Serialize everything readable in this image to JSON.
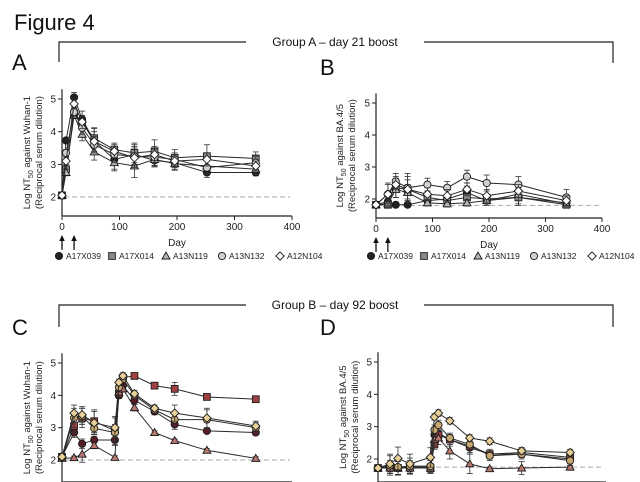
{
  "figure_title": "Figure 4",
  "groups": [
    {
      "label": "Group A – day 21 boost"
    },
    {
      "label": "Group B – day 92 boost"
    }
  ],
  "legend": {
    "entries": [
      {
        "name": "A17X039",
        "marker": "circle",
        "fill": "#222222"
      },
      {
        "name": "A17X014",
        "marker": "square",
        "fill": "#8a8a8a"
      },
      {
        "name": "A13N119",
        "marker": "triangle",
        "fill": "#b5b5b5"
      },
      {
        "name": "A13N132",
        "marker": "circle",
        "fill": "#d0d0d0"
      },
      {
        "name": "A12N104",
        "marker": "diamond",
        "fill": "#ffffff"
      }
    ]
  },
  "chart_data": [
    {
      "panel": "A",
      "type": "line",
      "title": "",
      "xlabel": "Day",
      "ylabel": "Log NT50 against Wuhan-1",
      "ylabel2": "(Reciprocal serum dilution)",
      "xlim": [
        0,
        400
      ],
      "ylim": [
        1.6,
        5.3
      ],
      "xticks": [
        0,
        100,
        200,
        300,
        400
      ],
      "yticks": [
        2,
        3,
        4,
        5
      ],
      "lod": 2.0,
      "dose_arrows_days": [
        0,
        21
      ],
      "show_xaxis_labels": true,
      "series": [
        {
          "name": "A17X039",
          "marker": "circle",
          "fill": "#222222",
          "x": [
            0,
            7,
            21,
            35,
            56,
            91,
            126,
            161,
            196,
            252,
            337
          ],
          "y": [
            2.05,
            3.73,
            5.05,
            4.38,
            3.72,
            3.15,
            3.3,
            3.12,
            3.05,
            2.75,
            2.75
          ],
          "err": [
            0,
            0.08,
            0.15,
            0.25,
            0.4,
            0.3,
            0.3,
            0.2,
            0.2,
            0.15,
            0.1
          ]
        },
        {
          "name": "A17X014",
          "marker": "square",
          "fill": "#8a8a8a",
          "x": [
            0,
            7,
            21,
            35,
            56,
            91,
            126,
            161,
            196,
            252,
            337
          ],
          "y": [
            2.05,
            2.85,
            4.55,
            4.25,
            3.8,
            3.45,
            3.35,
            3.4,
            3.2,
            3.25,
            3.18
          ],
          "err": [
            0,
            0.15,
            0.15,
            0.2,
            0.3,
            0.2,
            0.3,
            0.35,
            0.25,
            0.35,
            0.2
          ]
        },
        {
          "name": "A13N119",
          "marker": "triangle",
          "fill": "#b5b5b5",
          "x": [
            0,
            7,
            21,
            35,
            56,
            91,
            126,
            161,
            196,
            252,
            337
          ],
          "y": [
            2.05,
            2.75,
            4.5,
            3.92,
            3.38,
            3.05,
            2.95,
            3.15,
            3.02,
            2.95,
            2.85
          ],
          "err": [
            0,
            0.1,
            0.1,
            0.2,
            0.25,
            0.25,
            0.35,
            0.2,
            0.2,
            0.15,
            0.15
          ]
        },
        {
          "name": "A13N132",
          "marker": "circle",
          "fill": "#d0d0d0",
          "x": [
            0,
            7,
            21,
            35,
            56,
            91,
            126,
            161,
            196,
            252,
            337
          ],
          "y": [
            2.05,
            3.35,
            4.6,
            4.12,
            3.6,
            3.3,
            3.25,
            3.22,
            3.15,
            2.9,
            3.05
          ],
          "err": [
            0,
            0.1,
            0.15,
            0.2,
            0.25,
            0.25,
            0.3,
            0.25,
            0.2,
            0.2,
            0.2
          ]
        },
        {
          "name": "A12N104",
          "marker": "diamond",
          "fill": "#ffffff",
          "x": [
            0,
            7,
            21,
            35,
            56,
            91,
            126,
            161,
            196,
            252,
            337
          ],
          "y": [
            2.05,
            3.1,
            4.85,
            4.3,
            3.7,
            3.4,
            3.2,
            3.3,
            3.1,
            3.15,
            2.95
          ],
          "err": [
            0,
            0.1,
            0.15,
            0.2,
            0.3,
            0.2,
            0.3,
            0.25,
            0.2,
            0.2,
            0.15
          ]
        }
      ]
    },
    {
      "panel": "B",
      "type": "line",
      "title": "",
      "xlabel": "Day",
      "ylabel": "Log NT50 against BA.4/5",
      "ylabel2": "(Reciprocal serum dilution)",
      "xlim": [
        0,
        400
      ],
      "ylim": [
        1.4,
        5.3
      ],
      "xticks": [
        0,
        100,
        200,
        300,
        400
      ],
      "yticks": [
        2,
        3,
        4,
        5
      ],
      "lod": 1.8,
      "dose_arrows_days": [
        0,
        21
      ],
      "show_xaxis_labels": true,
      "series": [
        {
          "name": "A17X039",
          "marker": "circle",
          "fill": "#222222",
          "x": [
            0,
            21,
            35,
            56,
            91,
            126,
            161,
            196,
            252,
            337
          ],
          "y": [
            1.82,
            1.92,
            1.82,
            1.82,
            1.95,
            2.0,
            2.2,
            1.95,
            2.05,
            1.88
          ],
          "err": [
            0,
            0.15,
            0.05,
            0.05,
            0.15,
            0.15,
            0.2,
            0.15,
            0.25,
            0.1
          ]
        },
        {
          "name": "A17X014",
          "marker": "square",
          "fill": "#8a8a8a",
          "x": [
            0,
            21,
            35,
            56,
            91,
            126,
            161,
            196,
            252,
            337
          ],
          "y": [
            1.82,
            1.82,
            2.35,
            2.3,
            2.05,
            1.95,
            2.05,
            2.0,
            2.05,
            1.82
          ],
          "err": [
            0,
            0.1,
            0.3,
            0.3,
            0.2,
            0.15,
            0.2,
            0.15,
            0.2,
            0.05
          ]
        },
        {
          "name": "A13N119",
          "marker": "triangle",
          "fill": "#b5b5b5",
          "x": [
            0,
            21,
            35,
            56,
            91,
            126,
            161,
            196,
            252,
            337
          ],
          "y": [
            1.82,
            1.85,
            2.3,
            2.2,
            1.88,
            1.85,
            1.88,
            1.95,
            2.15,
            1.85
          ],
          "err": [
            0,
            0.1,
            0.25,
            0.25,
            0.1,
            0.1,
            0.1,
            0.1,
            0.2,
            0.05
          ]
        },
        {
          "name": "A13N132",
          "marker": "circle",
          "fill": "#d0d0d0",
          "x": [
            0,
            21,
            35,
            56,
            91,
            126,
            161,
            196,
            252,
            337
          ],
          "y": [
            1.82,
            2.15,
            2.55,
            2.35,
            2.45,
            2.35,
            2.7,
            2.5,
            2.45,
            2.05
          ],
          "err": [
            0,
            0.35,
            0.25,
            0.45,
            0.2,
            0.2,
            0.2,
            0.25,
            0.25,
            0.25
          ]
        },
        {
          "name": "A12N104",
          "marker": "diamond",
          "fill": "#ffffff",
          "x": [
            0,
            21,
            35,
            56,
            91,
            126,
            161,
            196,
            252,
            337
          ],
          "y": [
            1.82,
            2.15,
            2.45,
            2.3,
            2.15,
            2.1,
            2.3,
            2.1,
            2.25,
            1.95
          ],
          "err": [
            0,
            0.3,
            0.25,
            0.4,
            0.2,
            0.2,
            0.2,
            0.2,
            0.2,
            0.15
          ]
        }
      ]
    },
    {
      "panel": "C",
      "type": "line",
      "title": "",
      "xlabel": "",
      "ylabel": "Log NT50 against Wuhan-1",
      "ylabel2": "(Reciprocal serum dilution)",
      "xlim": [
        0,
        400
      ],
      "ylim": [
        1.6,
        5.3
      ],
      "xticks": [
        0,
        100,
        200,
        300,
        400
      ],
      "yticks": [
        2,
        3,
        4,
        5
      ],
      "lod": 2.0,
      "show_xaxis_labels": false,
      "series": [
        {
          "name": "A17X039",
          "marker": "circle",
          "fill": "#5a1a24",
          "x": [
            0,
            21,
            35,
            56,
            92,
            99,
            106,
            126,
            161,
            196,
            252,
            337
          ],
          "y": [
            2.1,
            2.85,
            2.5,
            2.62,
            2.62,
            4.0,
            4.3,
            3.85,
            3.5,
            3.1,
            2.9,
            2.85
          ],
          "err": [
            0,
            0.15,
            0.15,
            0.1,
            0.15,
            0.1,
            0.1,
            0.1,
            0.1,
            0.15,
            0.05,
            0.05
          ]
        },
        {
          "name": "A17X014",
          "marker": "square",
          "fill": "#a04040",
          "x": [
            0,
            21,
            35,
            56,
            92,
            99,
            106,
            126,
            161,
            196,
            252,
            337
          ],
          "y": [
            2.1,
            3.05,
            3.3,
            3.2,
            2.9,
            4.05,
            4.55,
            4.6,
            4.3,
            4.2,
            3.95,
            3.88
          ],
          "err": [
            0,
            0.2,
            0.3,
            0.35,
            0.45,
            0.1,
            0.1,
            0.05,
            0.1,
            0.2,
            0.05,
            0.05
          ]
        },
        {
          "name": "A13N119",
          "marker": "triangle",
          "fill": "#b87870",
          "x": [
            0,
            21,
            35,
            56,
            92,
            99,
            106,
            126,
            161,
            196,
            252,
            337
          ],
          "y": [
            2.05,
            2.07,
            2.18,
            2.45,
            2.08,
            4.1,
            4.2,
            3.62,
            2.85,
            2.6,
            2.3,
            2.05
          ],
          "err": [
            0,
            0.05,
            0.25,
            0.1,
            0.05,
            0.1,
            0.1,
            0.1,
            0.05,
            0.05,
            0.05,
            0.05
          ]
        },
        {
          "name": "A13N132",
          "marker": "circle",
          "fill": "#c8a870",
          "x": [
            0,
            21,
            35,
            56,
            92,
            99,
            106,
            126,
            161,
            196,
            252,
            337
          ],
          "y": [
            2.1,
            3.3,
            3.35,
            2.98,
            2.85,
            4.25,
            4.5,
            4.0,
            3.55,
            3.25,
            3.25,
            3.0
          ],
          "err": [
            0,
            0.3,
            0.25,
            0.2,
            0.25,
            0.1,
            0.1,
            0.1,
            0.1,
            0.2,
            0.3,
            0.15
          ]
        },
        {
          "name": "A12N104",
          "marker": "diamond",
          "fill": "#e8d098",
          "x": [
            0,
            21,
            35,
            56,
            92,
            99,
            106,
            126,
            161,
            196,
            252,
            337
          ],
          "y": [
            2.1,
            3.45,
            3.4,
            3.15,
            3.0,
            4.4,
            4.6,
            4.05,
            3.6,
            3.45,
            3.3,
            3.05
          ],
          "err": [
            0,
            0.25,
            0.25,
            0.35,
            0.3,
            0.1,
            0.1,
            0.1,
            0.1,
            0.25,
            0.3,
            0.15
          ]
        }
      ]
    },
    {
      "panel": "D",
      "type": "line",
      "title": "",
      "xlabel": "",
      "ylabel": "Log NT50 against BA.4/5",
      "ylabel2": "(Reciprocal serum dilution)",
      "xlim": [
        0,
        400
      ],
      "ylim": [
        1.4,
        5.3
      ],
      "xticks": [
        0,
        100,
        200,
        300,
        400
      ],
      "yticks": [
        2,
        3,
        4,
        5
      ],
      "lod": 1.75,
      "show_xaxis_labels": false,
      "series": [
        {
          "name": "A17X039",
          "marker": "circle",
          "fill": "#5a1a24",
          "x": [
            0,
            21,
            35,
            56,
            92,
            99,
            106,
            126,
            161,
            196,
            252,
            337
          ],
          "y": [
            1.72,
            1.75,
            1.72,
            1.75,
            1.75,
            2.75,
            2.8,
            2.6,
            2.35,
            2.15,
            2.15,
            2.0
          ],
          "err": [
            0,
            0.2,
            0.2,
            0.2,
            0.2,
            0.15,
            0.15,
            0.2,
            0.2,
            0.15,
            0.1,
            0.2
          ]
        },
        {
          "name": "A17X014",
          "marker": "square",
          "fill": "#a04040",
          "x": [
            0,
            21,
            35,
            56,
            92,
            99,
            106,
            126,
            161,
            196,
            252,
            337
          ],
          "y": [
            1.72,
            1.75,
            1.72,
            1.75,
            1.72,
            2.45,
            2.75,
            2.6,
            2.4,
            2.15,
            2.2,
            2.05
          ],
          "err": [
            0,
            0.15,
            0.2,
            0.15,
            0.15,
            0.15,
            0.15,
            0.15,
            0.2,
            0.1,
            0.15,
            0.1
          ]
        },
        {
          "name": "A13N119",
          "marker": "triangle",
          "fill": "#b87870",
          "x": [
            0,
            21,
            35,
            56,
            92,
            99,
            106,
            126,
            161,
            196,
            252,
            337
          ],
          "y": [
            1.72,
            1.72,
            1.72,
            1.72,
            1.72,
            2.6,
            2.65,
            2.25,
            1.85,
            1.7,
            1.72,
            1.75
          ],
          "err": [
            0,
            0.1,
            0.1,
            0.1,
            0.1,
            0.2,
            0.2,
            0.25,
            0.3,
            0.05,
            0.2,
            0.1
          ]
        },
        {
          "name": "A13N132",
          "marker": "circle",
          "fill": "#c8a870",
          "x": [
            0,
            21,
            35,
            56,
            92,
            99,
            106,
            126,
            161,
            196,
            252,
            337
          ],
          "y": [
            1.72,
            1.8,
            1.75,
            1.78,
            1.78,
            2.9,
            3.05,
            2.65,
            2.45,
            2.1,
            2.15,
            1.95
          ],
          "err": [
            0,
            0.3,
            0.25,
            0.25,
            0.2,
            0.15,
            0.15,
            0.1,
            0.15,
            0.15,
            0.15,
            0.15
          ]
        },
        {
          "name": "A12N104",
          "marker": "diamond",
          "fill": "#e8d098",
          "x": [
            0,
            21,
            35,
            56,
            92,
            99,
            106,
            126,
            161,
            196,
            252,
            337
          ],
          "y": [
            1.72,
            1.85,
            2.02,
            1.85,
            2.05,
            3.3,
            3.42,
            3.18,
            2.65,
            2.55,
            2.25,
            2.2
          ],
          "err": [
            0,
            0.3,
            0.35,
            0.3,
            0.3,
            0.1,
            0.1,
            0.1,
            0.1,
            0.1,
            0.1,
            0.1
          ]
        }
      ]
    }
  ]
}
